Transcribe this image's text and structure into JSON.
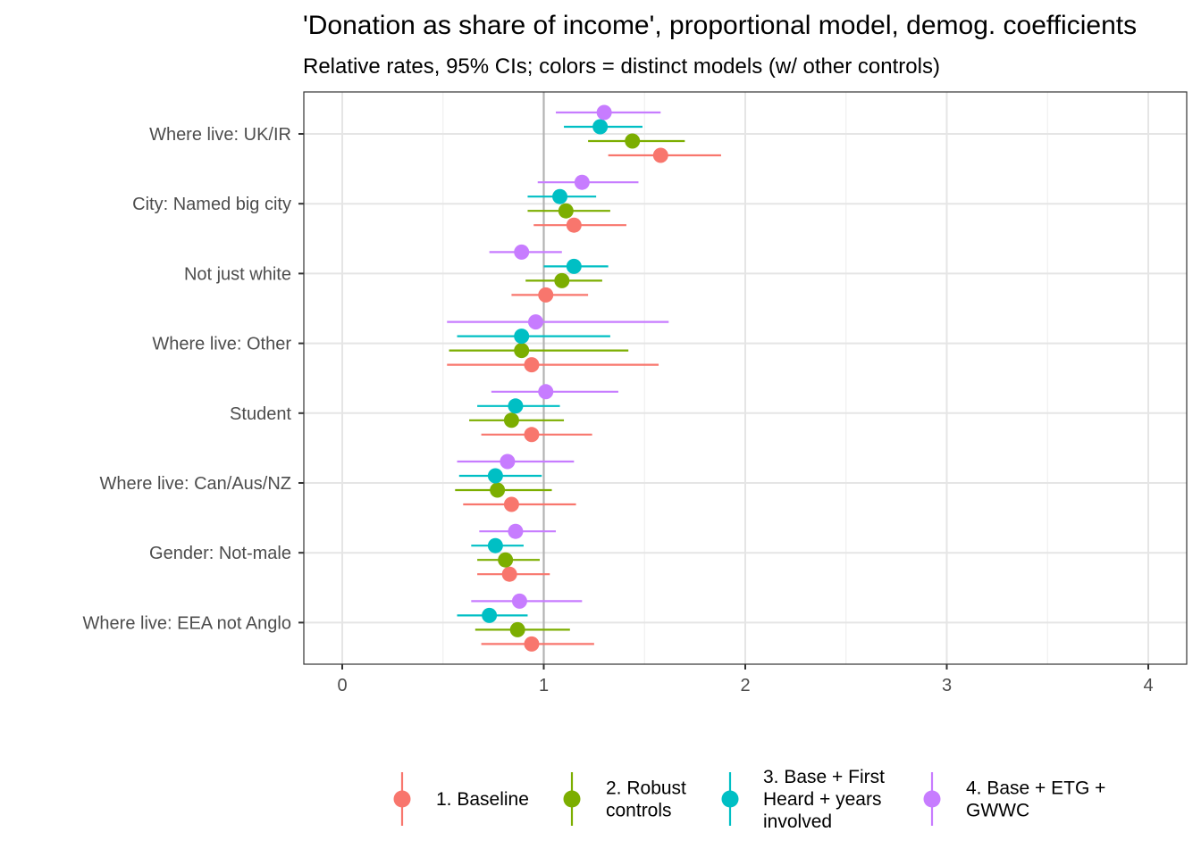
{
  "chart_data": {
    "type": "scatter",
    "title": "'Donation as share of income', proportional model, demog. coefficients",
    "subtitle": "Relative rates, 95% CIs; colors = distinct models (w/ other controls)",
    "xlim": [
      -0.2,
      4.2
    ],
    "x_ticks": [
      0,
      1,
      2,
      3,
      4
    ],
    "x_tick_labels": [
      "0",
      "1",
      "2",
      "3",
      "4"
    ],
    "reference_line_x": 1,
    "grid": true,
    "legend_position": "bottom",
    "categories": [
      "Where live: UK/IR",
      "City: Named big city",
      "Not just white",
      "Where live: Other",
      "Student",
      "Where live: Can/Aus/NZ",
      "Gender: Not-male",
      "Where live: EEA not Anglo"
    ],
    "series": [
      {
        "name": "1. Baseline",
        "legend_lines": [
          "1. Baseline"
        ],
        "color": "#F8766D",
        "estimates": [
          1.58,
          1.15,
          1.01,
          0.94,
          0.94,
          0.84,
          0.83,
          0.94
        ],
        "lower": [
          1.32,
          0.95,
          0.84,
          0.52,
          0.69,
          0.6,
          0.67,
          0.69
        ],
        "upper": [
          1.88,
          1.41,
          1.22,
          1.57,
          1.24,
          1.16,
          1.03,
          1.25
        ]
      },
      {
        "name": "2. Robust controls",
        "legend_lines": [
          "2. Robust",
          "controls"
        ],
        "color": "#7CAE00",
        "estimates": [
          1.44,
          1.11,
          1.09,
          0.89,
          0.84,
          0.77,
          0.81,
          0.87
        ],
        "lower": [
          1.22,
          0.92,
          0.91,
          0.53,
          0.63,
          0.56,
          0.67,
          0.66
        ],
        "upper": [
          1.7,
          1.33,
          1.29,
          1.42,
          1.1,
          1.04,
          0.98,
          1.13
        ]
      },
      {
        "name": "3. Base + First Heard + years involved",
        "legend_lines": [
          "3. Base + First",
          "Heard + years",
          "involved"
        ],
        "color": "#00BFC4",
        "estimates": [
          1.28,
          1.08,
          1.15,
          0.89,
          0.86,
          0.76,
          0.76,
          0.73
        ],
        "lower": [
          1.1,
          0.92,
          1.0,
          0.57,
          0.67,
          0.58,
          0.64,
          0.57
        ],
        "upper": [
          1.49,
          1.26,
          1.32,
          1.33,
          1.08,
          0.99,
          0.9,
          0.92
        ]
      },
      {
        "name": "4. Base + ETG + GWWC",
        "legend_lines": [
          "4. Base + ETG +",
          "GWWC"
        ],
        "color": "#C77CFF",
        "estimates": [
          1.3,
          1.19,
          0.89,
          0.96,
          1.01,
          0.82,
          0.86,
          0.88
        ],
        "lower": [
          1.06,
          0.97,
          0.73,
          0.52,
          0.74,
          0.57,
          0.68,
          0.64
        ],
        "upper": [
          1.58,
          1.47,
          1.09,
          1.62,
          1.37,
          1.15,
          1.06,
          1.19
        ]
      }
    ]
  }
}
